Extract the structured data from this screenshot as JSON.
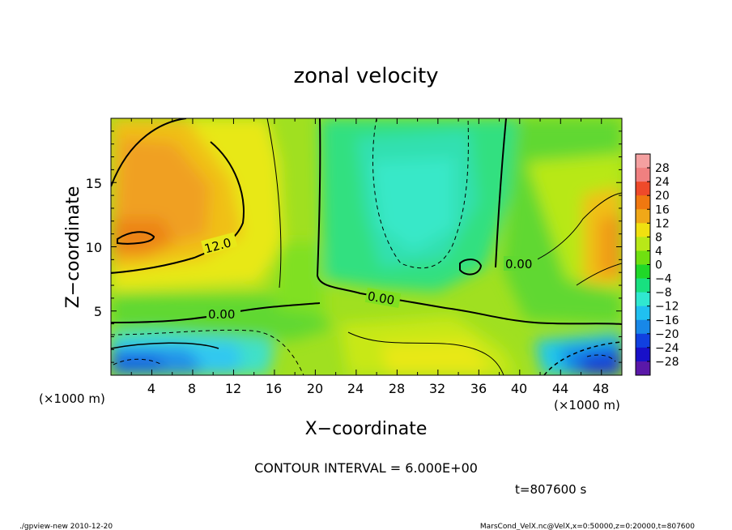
{
  "chart_data": {
    "type": "heatmap",
    "title": "zonal velocity",
    "xlabel": "X−coordinate",
    "ylabel": "Z−coordinate",
    "xunit": "(×1000 m)",
    "yunit": "(×1000 m)",
    "xlim": [
      0,
      50
    ],
    "ylim": [
      0,
      20
    ],
    "xticks": [
      "4",
      "8",
      "12",
      "16",
      "20",
      "24",
      "28",
      "32",
      "36",
      "40",
      "44",
      "48"
    ],
    "yticks": [
      "5",
      "10",
      "15"
    ],
    "colorbar_levels": [
      "28",
      "24",
      "20",
      "16",
      "12",
      "8",
      "4",
      "0",
      "−4",
      "−8",
      "−12",
      "−16",
      "−20",
      "−24",
      "−28"
    ],
    "colorbar_colors": [
      "#f08080",
      "#ee4a2a",
      "#f07810",
      "#f0a818",
      "#f0e010",
      "#b8e818",
      "#70e010",
      "#20d828",
      "#18e080",
      "#30e8d0",
      "#20c0f0",
      "#1888e8",
      "#1040e0",
      "#1810c8",
      "#5a18a8"
    ],
    "contour_labels": [
      "12.0",
      "0.00",
      "0.00",
      "0.00"
    ],
    "annotation": "CONTOUR INTERVAL = 6.000E+00",
    "time_label": "t=807600 s"
  },
  "footer": {
    "left": "./gpview-new 2010-12-20",
    "right": "MarsCond_VelX.nc@VelX,x=0:50000,z=0:20000,t=807600"
  }
}
